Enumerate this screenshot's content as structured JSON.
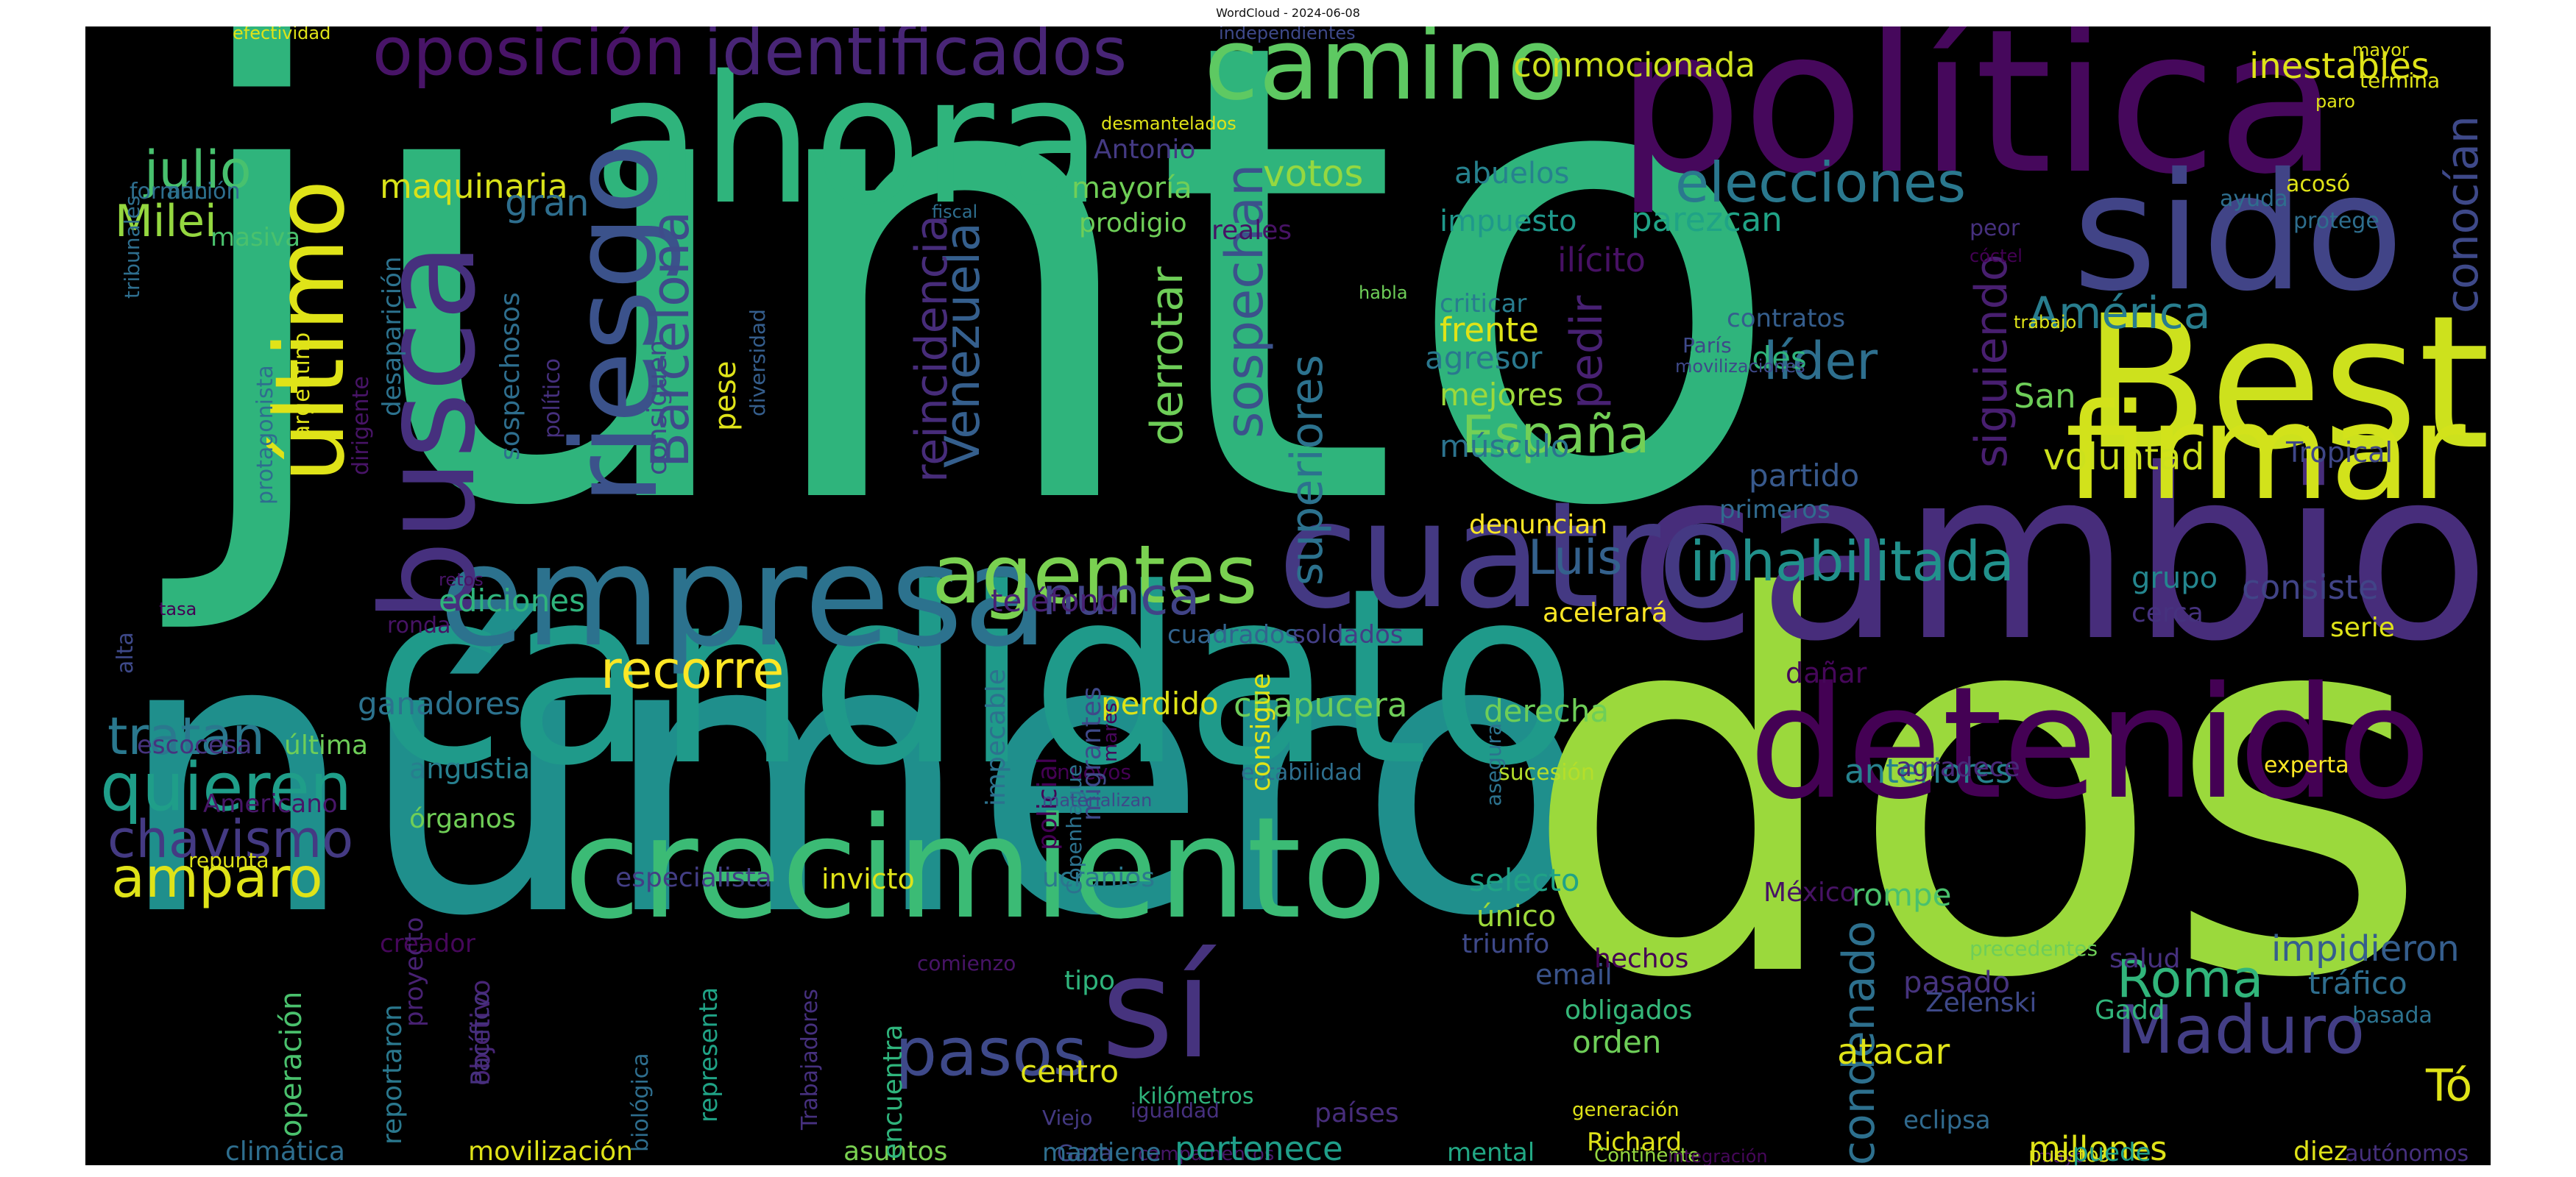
{
  "title": "WordCloud - 2024-06-08",
  "palette": [
    "#440154",
    "#482878",
    "#3e4989",
    "#31688e",
    "#26828e",
    "#1f9e89",
    "#35b779",
    "#6ece58",
    "#b5de2b",
    "#fde725"
  ],
  "words": [
    {
      "text": "junto",
      "color": "#2fb47c"
    },
    {
      "text": "número",
      "color": "#1f8f8c"
    },
    {
      "text": "dos",
      "color": "#9bd93c"
    },
    {
      "text": "cambio",
      "color": "#472d7b"
    },
    {
      "text": "candidato",
      "color": "#1f9a8a"
    },
    {
      "text": "política",
      "color": "#46085c"
    },
    {
      "text": "detenido",
      "color": "#440154"
    },
    {
      "text": "ahora",
      "color": "#2fb47c"
    },
    {
      "text": "Best",
      "color": "#cde11d"
    },
    {
      "text": "crecimiento",
      "color": "#3bbb75"
    },
    {
      "text": "cuatro",
      "color": "#443983"
    },
    {
      "text": "empresa",
      "color": "#2c728e"
    },
    {
      "text": "sido",
      "color": "#414487"
    },
    {
      "text": "firmar",
      "color": "#d2e21b"
    },
    {
      "text": "busca",
      "color": "#46307e"
    },
    {
      "text": "riesgo",
      "color": "#3b528b"
    },
    {
      "text": "último",
      "color": "#dfe318"
    },
    {
      "text": "sí",
      "color": "#46337e"
    },
    {
      "text": "camino",
      "color": "#5ec962"
    },
    {
      "text": "oposición",
      "color": "#481467"
    },
    {
      "text": "identificados",
      "color": "#482576"
    },
    {
      "text": "agentes",
      "color": "#7ad151"
    },
    {
      "text": "inhabilitada",
      "color": "#21918c"
    },
    {
      "text": "elecciones",
      "color": "#2a788e"
    },
    {
      "text": "Maduro",
      "color": "#433e85"
    },
    {
      "text": "quieren",
      "color": "#1f9e89"
    },
    {
      "text": "pasos",
      "color": "#3e4989"
    },
    {
      "text": "condenado",
      "color": "#2d708e"
    },
    {
      "text": "Roma",
      "color": "#31b57b"
    },
    {
      "text": "recorre",
      "color": "#fde725"
    },
    {
      "text": "nunca",
      "color": "#414487"
    },
    {
      "text": "amparo",
      "color": "#dfe318"
    },
    {
      "text": "chavismo",
      "color": "#443a83"
    },
    {
      "text": "tratan",
      "color": "#2a788e"
    },
    {
      "text": "sospechan",
      "color": "#3b528b"
    },
    {
      "text": "superiores",
      "color": "#2c728e"
    },
    {
      "text": "derrotar",
      "color": "#6ece58"
    },
    {
      "text": "Venezuela",
      "color": "#355f8d"
    },
    {
      "text": "reincidencia",
      "color": "#472c7a"
    },
    {
      "text": "Barcelona",
      "color": "#3e4c8a"
    },
    {
      "text": "España",
      "color": "#73d056"
    },
    {
      "text": "líder",
      "color": "#2e6f8e"
    },
    {
      "text": "América",
      "color": "#287d8e"
    },
    {
      "text": "conocían",
      "color": "#3e4989"
    },
    {
      "text": "siguiendo",
      "color": "#481f70"
    },
    {
      "text": "pedir",
      "color": "#482173"
    },
    {
      "text": "Luis",
      "color": "#34618d"
    },
    {
      "text": "voluntad",
      "color": "#cde11d"
    },
    {
      "text": "Tropical",
      "color": "#3f4788"
    },
    {
      "text": "Milei",
      "color": "#95d840"
    },
    {
      "text": "julio",
      "color": "#48c16e"
    },
    {
      "text": "maquinaria",
      "color": "#d8e219"
    },
    {
      "text": "conmocionada",
      "color": "#cde11d"
    },
    {
      "text": "inestables",
      "color": "#dfe318"
    },
    {
      "text": "votos",
      "color": "#95d840"
    },
    {
      "text": "abuelos",
      "color": "#26828e"
    },
    {
      "text": "impuesto",
      "color": "#1f988b"
    },
    {
      "text": "parezcan",
      "color": "#20a386"
    },
    {
      "text": "ilícito",
      "color": "#471164"
    },
    {
      "text": "mayoría",
      "color": "#70cf57"
    },
    {
      "text": "Antonio",
      "color": "#443a83"
    },
    {
      "text": "prodigio",
      "color": "#6ece58"
    },
    {
      "text": "reales",
      "color": "#471365"
    },
    {
      "text": "gran",
      "color": "#2e6e8e"
    },
    {
      "text": "criticar",
      "color": "#287c8e"
    },
    {
      "text": "frente",
      "color": "#dfe318"
    },
    {
      "text": "agresor",
      "color": "#2a788e"
    },
    {
      "text": "fraudes",
      "color": "#2fb47c"
    },
    {
      "text": "contratos",
      "color": "#355e8d"
    },
    {
      "text": "mejores",
      "color": "#9dd93b"
    },
    {
      "text": "músculo",
      "color": "#2c738e"
    },
    {
      "text": "partido",
      "color": "#38598c"
    },
    {
      "text": "primeros",
      "color": "#306a8e"
    },
    {
      "text": "denuncian",
      "color": "#fde725"
    },
    {
      "text": "San",
      "color": "#6ece58"
    },
    {
      "text": "grupo",
      "color": "#24868e"
    },
    {
      "text": "consiste",
      "color": "#414487"
    },
    {
      "text": "cerca",
      "color": "#46327e"
    },
    {
      "text": "serie",
      "color": "#dfe318"
    },
    {
      "text": "acelerará",
      "color": "#fde725"
    },
    {
      "text": "soldados",
      "color": "#433e85"
    },
    {
      "text": "cuadrados",
      "color": "#32648e"
    },
    {
      "text": "teléfono",
      "color": "#482173"
    },
    {
      "text": "ediciones",
      "color": "#2fb47c"
    },
    {
      "text": "ganadores",
      "color": "#2c728e"
    },
    {
      "text": "perdido",
      "color": "#dfe318"
    },
    {
      "text": "chapucera",
      "color": "#6ece58"
    },
    {
      "text": "derecha",
      "color": "#6ece58"
    },
    {
      "text": "anteriores",
      "color": "#26828e"
    },
    {
      "text": "dañar",
      "color": "#46075a"
    },
    {
      "text": "agradece",
      "color": "#482878"
    },
    {
      "text": "experta",
      "color": "#fde725"
    },
    {
      "text": "sucesión",
      "color": "#b5de2b"
    },
    {
      "text": "estabilidad",
      "color": "#2e6f8e"
    },
    {
      "text": "nuevos",
      "color": "#440154"
    },
    {
      "text": "asegura",
      "color": "#2c728e"
    },
    {
      "text": "angustia",
      "color": "#277f8e"
    },
    {
      "text": "órganos",
      "color": "#70cf57"
    },
    {
      "text": "escocesa",
      "color": "#46337e"
    },
    {
      "text": "última",
      "color": "#6ece58"
    },
    {
      "text": "Americano",
      "color": "#481668"
    },
    {
      "text": "repunta",
      "color": "#dfe318"
    },
    {
      "text": "especialista",
      "color": "#433e85"
    },
    {
      "text": "invicto",
      "color": "#dfe318"
    },
    {
      "text": "ucranios",
      "color": "#2a788e"
    },
    {
      "text": "selecto",
      "color": "#20a386"
    },
    {
      "text": "único",
      "color": "#9dd93b"
    },
    {
      "text": "rompe",
      "color": "#4ac16d"
    },
    {
      "text": "México",
      "color": "#471365"
    },
    {
      "text": "triunfo",
      "color": "#3e4989"
    },
    {
      "text": "creador",
      "color": "#46075a"
    },
    {
      "text": "comienzo",
      "color": "#481467"
    },
    {
      "text": "tipo",
      "color": "#2fb47c"
    },
    {
      "text": "email",
      "color": "#3a538b"
    },
    {
      "text": "hechos",
      "color": "#440154"
    },
    {
      "text": "pasado",
      "color": "#46337e"
    },
    {
      "text": "precedentes",
      "color": "#6ece58"
    },
    {
      "text": "salud",
      "color": "#46307e"
    },
    {
      "text": "impidieron",
      "color": "#355e8d"
    },
    {
      "text": "tráfico",
      "color": "#2e6e8e"
    },
    {
      "text": "obligados",
      "color": "#35b779"
    },
    {
      "text": "Zelenski",
      "color": "#3e4989"
    },
    {
      "text": "orden",
      "color": "#6ece58"
    },
    {
      "text": "atacar",
      "color": "#dfe318"
    },
    {
      "text": "Gadd",
      "color": "#31b57b"
    },
    {
      "text": "basada",
      "color": "#2c728e"
    },
    {
      "text": "centro",
      "color": "#dfe318"
    },
    {
      "text": "kilómetros",
      "color": "#2fb47c"
    },
    {
      "text": "igualdad",
      "color": "#46307e"
    },
    {
      "text": "países",
      "color": "#472d7b"
    },
    {
      "text": "generación",
      "color": "#dfe318"
    },
    {
      "text": "Richard",
      "color": "#dfe318"
    },
    {
      "text": "eclipsa",
      "color": "#306a8e"
    },
    {
      "text": "Tó",
      "color": "#dfe318"
    },
    {
      "text": "campamentos",
      "color": "#481668"
    },
    {
      "text": "Viejo",
      "color": "#443983"
    },
    {
      "text": "Gaza",
      "color": "#414487"
    },
    {
      "text": "pertenece",
      "color": "#1f9e89"
    },
    {
      "text": "mantiene",
      "color": "#2e6e8e"
    },
    {
      "text": "mental",
      "color": "#22a884"
    },
    {
      "text": "Continente",
      "color": "#95d840"
    },
    {
      "text": "integración",
      "color": "#46075a"
    },
    {
      "text": "mayo",
      "color": "#481668"
    },
    {
      "text": "puestos",
      "color": "#dfe318"
    },
    {
      "text": "millones",
      "color": "#dfe318"
    },
    {
      "text": "puede",
      "color": "#1f9e89"
    },
    {
      "text": "diez",
      "color": "#dfe318"
    },
    {
      "text": "autónomos",
      "color": "#46307e"
    },
    {
      "text": "climática",
      "color": "#2e6e8e"
    },
    {
      "text": "movilización",
      "color": "#dfe318"
    },
    {
      "text": "asuntos",
      "color": "#7ad151"
    },
    {
      "text": "operación",
      "color": "#4ac16d"
    },
    {
      "text": "reportaron",
      "color": "#2a788e"
    },
    {
      "text": "encuentra",
      "color": "#2fb47c"
    },
    {
      "text": "objetivo",
      "color": "#482576"
    },
    {
      "text": "proyecto",
      "color": "#482173"
    },
    {
      "text": "Pacífico",
      "color": "#46307e"
    },
    {
      "text": "biológica",
      "color": "#2e6e8e"
    },
    {
      "text": "representa",
      "color": "#20a386"
    },
    {
      "text": "Trabajadores",
      "color": "#46307e"
    },
    {
      "text": "impecable",
      "color": "#2c728e"
    },
    {
      "text": "policial",
      "color": "#440154"
    },
    {
      "text": "migrantes",
      "color": "#3e4989"
    },
    {
      "text": "Copenhague",
      "color": "#2c728e"
    },
    {
      "text": "mares",
      "color": "#46075a"
    },
    {
      "text": "materializan",
      "color": "#3e4989"
    },
    {
      "text": "pese",
      "color": "#dfe318"
    },
    {
      "text": "consigue",
      "color": "#dfe318"
    },
    {
      "text": "consiguen",
      "color": "#3f4788"
    },
    {
      "text": "sospechosos",
      "color": "#2e6e8e"
    },
    {
      "text": "político",
      "color": "#46307e"
    },
    {
      "text": "diversidad",
      "color": "#355e8d"
    },
    {
      "text": "desaparición",
      "color": "#2c728e"
    },
    {
      "text": "dirigente",
      "color": "#481467"
    },
    {
      "text": "ronda",
      "color": "#471365"
    },
    {
      "text": "retos",
      "color": "#481467"
    },
    {
      "text": "tasa",
      "color": "#440154"
    },
    {
      "text": "alta",
      "color": "#3e4989"
    },
    {
      "text": "argentino",
      "color": "#dfe318"
    },
    {
      "text": "protagonista",
      "color": "#2e6e8e"
    },
    {
      "text": "tribunales",
      "color": "#2e6e8e"
    },
    {
      "text": "masiva",
      "color": "#4ac16d"
    },
    {
      "text": "formación",
      "color": "#2e6e8e"
    },
    {
      "text": "aún",
      "color": "#2c728e"
    },
    {
      "text": "efectividad",
      "color": "#dfe318"
    },
    {
      "text": "desmantelados",
      "color": "#dfe318"
    },
    {
      "text": "independientes",
      "color": "#3e4989"
    },
    {
      "text": "fiscal",
      "color": "#2e6e8e"
    },
    {
      "text": "mayor",
      "color": "#dfe318"
    },
    {
      "text": "paro",
      "color": "#dfe318"
    },
    {
      "text": "termina",
      "color": "#dfe318"
    },
    {
      "text": "acosó",
      "color": "#dfe318"
    },
    {
      "text": "ayuda",
      "color": "#2e6e8e"
    },
    {
      "text": "peor",
      "color": "#46307e"
    },
    {
      "text": "protege",
      "color": "#2e6e8e"
    },
    {
      "text": "cóctel",
      "color": "#440154"
    },
    {
      "text": "movilizaciones",
      "color": "#3e4989"
    },
    {
      "text": "trabajo",
      "color": "#dfe318"
    },
    {
      "text": "París",
      "color": "#3e4989"
    },
    {
      "text": "habla",
      "color": "#6ece58"
    }
  ]
}
